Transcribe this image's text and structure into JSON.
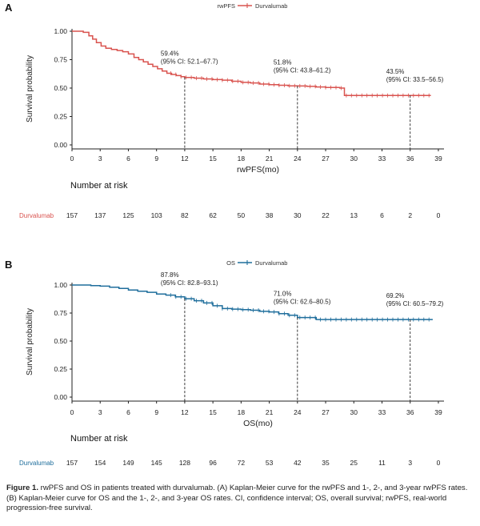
{
  "chart_data": [
    {
      "panel_label": "A",
      "type": "line",
      "subtype": "kaplan-meier",
      "legend": {
        "title": "rwPFS",
        "entries": [
          "Durvalumab"
        ],
        "placement": "top-center"
      },
      "color": "#d9534f",
      "xlabel": "rwPFS(mo)",
      "ylabel": "Survival probability",
      "xlim": [
        0,
        39
      ],
      "ylim": [
        0,
        1
      ],
      "xticks": [
        "0",
        "3",
        "6",
        "9",
        "12",
        "15",
        "18",
        "21",
        "24",
        "27",
        "30",
        "33",
        "36",
        "39"
      ],
      "yticks": [
        "0.00",
        "0.25",
        "0.50",
        "0.75",
        "1.00"
      ],
      "series": [
        {
          "name": "Durvalumab",
          "x": [
            0,
            1.2,
            1.8,
            2.2,
            2.6,
            3.1,
            3.6,
            4.2,
            4.8,
            5.4,
            6.0,
            6.6,
            7.1,
            7.6,
            8.1,
            8.6,
            9.1,
            9.6,
            10.1,
            10.6,
            11.1,
            11.6,
            12.0,
            13.0,
            14.0,
            15.0,
            16.0,
            17.0,
            18.0,
            19.0,
            20.0,
            21.0,
            22.0,
            23.0,
            24.0,
            25.0,
            26.0,
            27.0,
            28.5,
            29.0,
            30.0,
            33.0,
            36.0,
            38.2
          ],
          "y": [
            1.0,
            0.99,
            0.96,
            0.93,
            0.9,
            0.87,
            0.85,
            0.84,
            0.83,
            0.82,
            0.8,
            0.77,
            0.75,
            0.73,
            0.71,
            0.69,
            0.67,
            0.65,
            0.63,
            0.62,
            0.61,
            0.6,
            0.594,
            0.587,
            0.58,
            0.575,
            0.57,
            0.56,
            0.55,
            0.545,
            0.535,
            0.53,
            0.525,
            0.52,
            0.518,
            0.515,
            0.51,
            0.505,
            0.5,
            0.435,
            0.435,
            0.435,
            0.435,
            0.435
          ]
        }
      ],
      "annotations": [
        {
          "x": 12,
          "y": 0.594,
          "label": "59.4%",
          "ci": "(95% CI: 52.1–67.7)"
        },
        {
          "x": 24,
          "y": 0.518,
          "label": "51.8%",
          "ci": "(95% CI: 43.8–61.2)"
        },
        {
          "x": 36,
          "y": 0.435,
          "label": "43.5%",
          "ci": "(95% CI: 33.5–56.5)"
        }
      ],
      "risk_table": {
        "title": "Number at risk",
        "group": "Durvalumab",
        "times": [
          0,
          3,
          6,
          9,
          12,
          15,
          18,
          21,
          24,
          27,
          30,
          33,
          36,
          39
        ],
        "counts": [
          "157",
          "137",
          "125",
          "103",
          "82",
          "62",
          "50",
          "38",
          "30",
          "22",
          "13",
          "6",
          "2",
          "0"
        ]
      }
    },
    {
      "panel_label": "B",
      "type": "line",
      "subtype": "kaplan-meier",
      "legend": {
        "title": "OS",
        "entries": [
          "Durvalumab"
        ],
        "placement": "top-center"
      },
      "color": "#1f6e9c",
      "xlabel": "OS(mo)",
      "ylabel": "Survival probability",
      "xlim": [
        0,
        39
      ],
      "ylim": [
        0,
        1
      ],
      "xticks": [
        "0",
        "3",
        "6",
        "9",
        "12",
        "15",
        "18",
        "21",
        "24",
        "27",
        "30",
        "33",
        "36",
        "39"
      ],
      "yticks": [
        "0.00",
        "0.25",
        "0.50",
        "0.75",
        "1.00"
      ],
      "series": [
        {
          "name": "Durvalumab",
          "x": [
            0,
            2.0,
            3.0,
            4.0,
            5.0,
            6.0,
            7.0,
            8.0,
            9.0,
            10.0,
            11.0,
            12.0,
            13.0,
            14.0,
            15.0,
            16.0,
            17.0,
            18.0,
            19.0,
            20.0,
            21.0,
            22.0,
            23.0,
            24.0,
            26.0,
            30.0,
            33.0,
            36.0,
            38.4
          ],
          "y": [
            1.0,
            0.995,
            0.99,
            0.98,
            0.97,
            0.955,
            0.945,
            0.935,
            0.92,
            0.91,
            0.895,
            0.878,
            0.86,
            0.84,
            0.815,
            0.79,
            0.785,
            0.78,
            0.775,
            0.765,
            0.76,
            0.745,
            0.73,
            0.71,
            0.692,
            0.692,
            0.692,
            0.692,
            0.692
          ]
        }
      ],
      "annotations": [
        {
          "x": 12,
          "y": 0.878,
          "label": "87.8%",
          "ci": "(95% CI: 82.8–93.1)"
        },
        {
          "x": 24,
          "y": 0.71,
          "label": "71.0%",
          "ci": "(95% CI: 62.6–80.5)"
        },
        {
          "x": 36,
          "y": 0.692,
          "label": "69.2%",
          "ci": "(95% CI: 60.5–79.2)"
        }
      ],
      "risk_table": {
        "title": "Number at risk",
        "group": "Durvalumab",
        "times": [
          0,
          3,
          6,
          9,
          12,
          15,
          18,
          21,
          24,
          27,
          30,
          33,
          36,
          39
        ],
        "counts": [
          "157",
          "154",
          "149",
          "145",
          "128",
          "96",
          "72",
          "53",
          "42",
          "35",
          "25",
          "11",
          "3",
          "0"
        ]
      }
    }
  ],
  "caption": {
    "label": "Figure 1.",
    "text": "rwPFS and OS in patients treated with durvalumab. (A) Kaplan-Meier curve for the rwPFS and 1-, 2-, and 3-year rwPFS rates. (B) Kaplan-Meier curve for OS and the 1-, 2-, and 3-year OS rates. CI, confidence interval; OS, overall survival; rwPFS, real-world progression-free survival."
  }
}
